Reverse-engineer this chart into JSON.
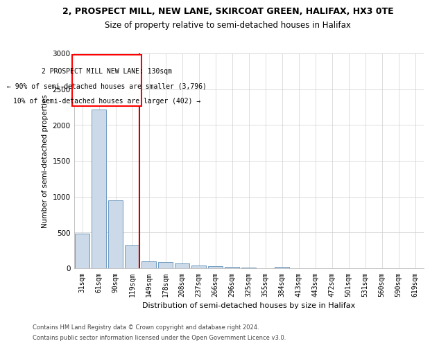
{
  "title1": "2, PROSPECT MILL, NEW LANE, SKIRCOAT GREEN, HALIFAX, HX3 0TE",
  "title2": "Size of property relative to semi-detached houses in Halifax",
  "xlabel": "Distribution of semi-detached houses by size in Halifax",
  "ylabel": "Number of semi-detached properties",
  "footer1": "Contains HM Land Registry data © Crown copyright and database right 2024.",
  "footer2": "Contains public sector information licensed under the Open Government Licence v3.0.",
  "annotation_line1": "2 PROSPECT MILL NEW LANE: 130sqm",
  "annotation_line2": "← 90% of semi-detached houses are smaller (3,796)",
  "annotation_line3": "10% of semi-detached houses are larger (402) →",
  "categories": [
    "31sqm",
    "61sqm",
    "90sqm",
    "119sqm",
    "149sqm",
    "178sqm",
    "208sqm",
    "237sqm",
    "266sqm",
    "296sqm",
    "325sqm",
    "355sqm",
    "384sqm",
    "413sqm",
    "443sqm",
    "472sqm",
    "501sqm",
    "531sqm",
    "560sqm",
    "590sqm",
    "619sqm"
  ],
  "values": [
    480,
    2220,
    950,
    315,
    100,
    88,
    65,
    38,
    28,
    22,
    5,
    2,
    22,
    0,
    0,
    0,
    0,
    0,
    0,
    0,
    0
  ],
  "bar_color": "#ccd9e8",
  "bar_edge_color": "#5b8db8",
  "highlight_index": 3,
  "highlight_color": "#cc0000",
  "ylim": [
    0,
    3000
  ],
  "yticks": [
    0,
    500,
    1000,
    1500,
    2000,
    2500,
    3000
  ],
  "background_color": "#ffffff",
  "grid_color": "#d0d0d0",
  "title1_fontsize": 9,
  "title2_fontsize": 8.5,
  "xlabel_fontsize": 8,
  "ylabel_fontsize": 7.5,
  "tick_fontsize": 7,
  "footer_fontsize": 6,
  "annot_fontsize": 7
}
